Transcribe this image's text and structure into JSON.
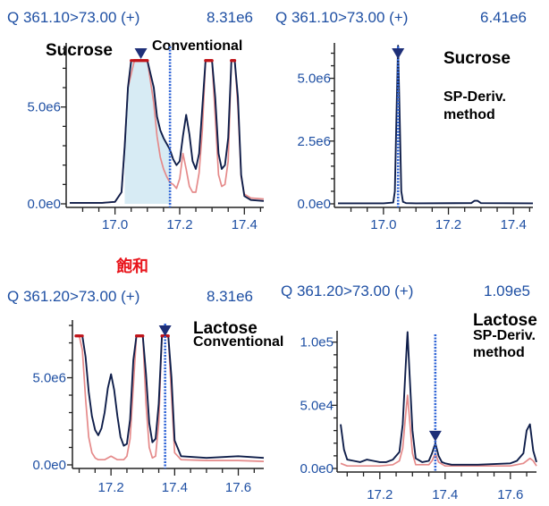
{
  "saturation_label": "飽和",
  "colors": {
    "header_text": "#1e4fa3",
    "dark_trace": "#0f1e4a",
    "light_trace": "#e58a8a",
    "saturated_trace": "#c0141a",
    "marker": "#1e2f78",
    "rt_line": "#2f64d6",
    "shade": "#d7ebf4",
    "saturation_text": "#e8141b"
  },
  "chart_data": [
    {
      "id": "sucrose-conventional",
      "type": "line",
      "header": {
        "transition": "Q 361.10>73.00 (+)",
        "intensity": "8.31e6"
      },
      "labels": [
        "Sucrose",
        "Conventional"
      ],
      "xlim": [
        16.86,
        17.46
      ],
      "ylim": [
        0,
        8310000.0
      ],
      "x_ticks": [
        17.0,
        17.2,
        17.4
      ],
      "x_tick_labels": [
        "17.0",
        "17.2",
        "17.4"
      ],
      "y_ticks": [
        0,
        5000000.0
      ],
      "y_tick_labels": [
        "0.0e0",
        "5.0e6"
      ],
      "saturation_level": 7400000.0,
      "rt_line_x": 17.17,
      "marker_x": 17.08,
      "shaded_range": [
        17.03,
        17.17
      ],
      "series": [
        {
          "role": "dark",
          "x": [
            16.86,
            16.96,
            17.0,
            17.02,
            17.03,
            17.04,
            17.05,
            17.06,
            17.08,
            17.1,
            17.12,
            17.13,
            17.14,
            17.15,
            17.16,
            17.17,
            17.18,
            17.19,
            17.2,
            17.21,
            17.22,
            17.23,
            17.24,
            17.25,
            17.26,
            17.27,
            17.28,
            17.29,
            17.3,
            17.31,
            17.32,
            17.33,
            17.34,
            17.35,
            17.36,
            17.37,
            17.38,
            17.39,
            17.4,
            17.42,
            17.46
          ],
          "y": [
            50000.0,
            50000.0,
            100000.0,
            600000.0,
            3000000.0,
            6000000.0,
            7400000.0,
            7400000.0,
            7400000.0,
            7400000.0,
            6000000.0,
            4500000.0,
            3800000.0,
            3400000.0,
            3100000.0,
            2800000.0,
            2300000.0,
            2000000.0,
            2200000.0,
            3500000.0,
            4600000.0,
            3600000.0,
            2200000.0,
            1800000.0,
            2600000.0,
            5000000.0,
            7400000.0,
            7400000.0,
            7400000.0,
            5500000.0,
            2600000.0,
            1800000.0,
            2000000.0,
            3400000.0,
            7400000.0,
            7400000.0,
            5500000.0,
            1500000.0,
            400000.0,
            200000.0,
            150000.0
          ]
        },
        {
          "role": "light",
          "x": [
            16.86,
            16.96,
            17.0,
            17.02,
            17.03,
            17.04,
            17.06,
            17.08,
            17.1,
            17.12,
            17.13,
            17.14,
            17.15,
            17.16,
            17.17,
            17.18,
            17.19,
            17.2,
            17.21,
            17.22,
            17.23,
            17.24,
            17.25,
            17.26,
            17.27,
            17.28,
            17.29,
            17.3,
            17.31,
            17.32,
            17.33,
            17.34,
            17.35,
            17.36,
            17.37,
            17.38,
            17.39,
            17.4,
            17.42,
            17.46
          ],
          "y": [
            50000.0,
            50000.0,
            100000.0,
            600000.0,
            3000000.0,
            6000000.0,
            7400000.0,
            7400000.0,
            7400000.0,
            5200000.0,
            3500000.0,
            2400000.0,
            1800000.0,
            1400000.0,
            1100000.0,
            1000000.0,
            800000.0,
            1300000.0,
            2600000.0,
            1800000.0,
            900000.0,
            600000.0,
            600000.0,
            1600000.0,
            3800000.0,
            7400000.0,
            7400000.0,
            7400000.0,
            4500000.0,
            1500000.0,
            900000.0,
            1000000.0,
            2200000.0,
            7400000.0,
            7400000.0,
            5000000.0,
            1400000.0,
            500000.0,
            300000.0,
            250000.0
          ]
        }
      ]
    },
    {
      "id": "sucrose-spderiv",
      "type": "line",
      "header": {
        "transition": "Q 361.10>73.00 (+)",
        "intensity": "6.41e6"
      },
      "labels": [
        "Sucrose",
        "SP-Deriv.",
        "method"
      ],
      "xlim": [
        16.86,
        17.46
      ],
      "ylim": [
        0,
        6410000.0
      ],
      "x_ticks": [
        17.0,
        17.2,
        17.4
      ],
      "x_tick_labels": [
        "17.0",
        "17.2",
        "17.4"
      ],
      "y_ticks": [
        0,
        2500000.0,
        5000000.0
      ],
      "y_tick_labels": [
        "0.0e0",
        "2.5e6",
        "5.0e6"
      ],
      "rt_line_x": 17.045,
      "marker_x": 17.045,
      "series": [
        {
          "role": "dark",
          "x": [
            16.86,
            17.0,
            17.03,
            17.035,
            17.04,
            17.045,
            17.05,
            17.055,
            17.06,
            17.07,
            17.1,
            17.27,
            17.28,
            17.29,
            17.3,
            17.46
          ],
          "y": [
            20000.0,
            20000.0,
            50000.0,
            500000.0,
            3500000.0,
            6300000.0,
            3500000.0,
            500000.0,
            80000.0,
            30000.0,
            20000.0,
            30000.0,
            120000.0,
            120000.0,
            30000.0,
            20000.0
          ]
        }
      ]
    },
    {
      "id": "lactose-conventional",
      "type": "line",
      "header": {
        "transition": "Q 361.20>73.00 (+)",
        "intensity": "8.31e6"
      },
      "labels": [
        "Lactose",
        "Conventional"
      ],
      "xlim": [
        17.09,
        17.68
      ],
      "ylim": [
        0,
        8310000.0
      ],
      "x_ticks": [
        17.2,
        17.4,
        17.6
      ],
      "x_tick_labels": [
        "17.2",
        "17.4",
        "17.6"
      ],
      "y_ticks": [
        0,
        5000000.0
      ],
      "y_tick_labels": [
        "0.0e0",
        "5.0e6"
      ],
      "saturation_level": 7400000.0,
      "rt_line_x": 17.37,
      "marker_x": 17.37,
      "series": [
        {
          "role": "dark",
          "x": [
            17.09,
            17.1,
            17.11,
            17.12,
            17.13,
            17.14,
            17.15,
            17.16,
            17.17,
            17.18,
            17.19,
            17.2,
            17.21,
            17.22,
            17.23,
            17.24,
            17.25,
            17.26,
            17.27,
            17.28,
            17.29,
            17.3,
            17.31,
            17.32,
            17.33,
            17.34,
            17.35,
            17.36,
            17.37,
            17.38,
            17.39,
            17.4,
            17.42,
            17.5,
            17.6,
            17.68
          ],
          "y": [
            7400000.0,
            7400000.0,
            7400000.0,
            6200000.0,
            4200000.0,
            2800000.0,
            2000000.0,
            1700000.0,
            2100000.0,
            3000000.0,
            4400000.0,
            5200000.0,
            4300000.0,
            2800000.0,
            1600000.0,
            1100000.0,
            1200000.0,
            2600000.0,
            6000000.0,
            7400000.0,
            7400000.0,
            7400000.0,
            5200000.0,
            2400000.0,
            1300000.0,
            1500000.0,
            3500000.0,
            7400000.0,
            7400000.0,
            7400000.0,
            5000000.0,
            1400000.0,
            500000.0,
            400000.0,
            500000.0,
            400000.0
          ]
        },
        {
          "role": "light",
          "x": [
            17.09,
            17.1,
            17.11,
            17.12,
            17.13,
            17.14,
            17.15,
            17.16,
            17.17,
            17.18,
            17.19,
            17.2,
            17.21,
            17.22,
            17.23,
            17.24,
            17.25,
            17.26,
            17.27,
            17.28,
            17.29,
            17.3,
            17.31,
            17.32,
            17.33,
            17.34,
            17.35,
            17.36,
            17.37,
            17.38,
            17.39,
            17.4,
            17.42,
            17.5,
            17.6,
            17.68
          ],
          "y": [
            7400000.0,
            7400000.0,
            6600000.0,
            3800000.0,
            1600000.0,
            700000.0,
            400000.0,
            300000.0,
            300000.0,
            300000.0,
            400000.0,
            500000.0,
            400000.0,
            300000.0,
            300000.0,
            300000.0,
            500000.0,
            1500000.0,
            4500000.0,
            7400000.0,
            7400000.0,
            7400000.0,
            3500000.0,
            1000000.0,
            400000.0,
            500000.0,
            2400000.0,
            7400000.0,
            7400000.0,
            7400000.0,
            4000000.0,
            700000.0,
            300000.0,
            250000.0,
            250000.0,
            200000.0
          ]
        }
      ]
    },
    {
      "id": "lactose-spderiv",
      "type": "line",
      "header": {
        "transition": "Q 361.20>73.00 (+)",
        "intensity": "1.09e5"
      },
      "labels": [
        "Lactose",
        "SP-Deriv.",
        "method"
      ],
      "xlim": [
        17.08,
        17.68
      ],
      "ylim": [
        0,
        109000.0
      ],
      "x_ticks": [
        17.2,
        17.4,
        17.6
      ],
      "x_tick_labels": [
        "17.2",
        "17.4",
        "17.6"
      ],
      "y_ticks": [
        0,
        50000.0,
        100000.0
      ],
      "y_tick_labels": [
        "0.0e0",
        "5.0e4",
        "1.0e5"
      ],
      "rt_line_x": 17.37,
      "marker_x": 17.37,
      "series": [
        {
          "role": "dark",
          "x": [
            17.08,
            17.09,
            17.1,
            17.12,
            17.14,
            17.16,
            17.18,
            17.2,
            17.22,
            17.24,
            17.26,
            17.27,
            17.28,
            17.285,
            17.29,
            17.3,
            17.31,
            17.33,
            17.35,
            17.36,
            17.37,
            17.38,
            17.39,
            17.4,
            17.42,
            17.5,
            17.6,
            17.62,
            17.64,
            17.65,
            17.66,
            17.67,
            17.68
          ],
          "y": [
            35000.0,
            15000.0,
            7000.0,
            6000.0,
            5000.0,
            7000.0,
            6000.0,
            5000.0,
            5000.0,
            7000.0,
            13000.0,
            35000.0,
            85000.0,
            108000.0,
            80000.0,
            30000.0,
            8000.0,
            5000.0,
            6000.0,
            12000.0,
            20000.0,
            10000.0,
            5000.0,
            4000.0,
            3000.0,
            3000.0,
            4000.0,
            6000.0,
            12000.0,
            30000.0,
            35000.0,
            14000.0,
            5000.0
          ]
        },
        {
          "role": "light",
          "x": [
            17.08,
            17.1,
            17.14,
            17.2,
            17.24,
            17.26,
            17.27,
            17.28,
            17.285,
            17.29,
            17.3,
            17.31,
            17.35,
            17.36,
            17.37,
            17.38,
            17.4,
            17.5,
            17.6,
            17.64,
            17.66,
            17.67,
            17.68
          ],
          "y": [
            4000.0,
            2000.0,
            2000.0,
            2000.0,
            3000.0,
            6000.0,
            16000.0,
            45000.0,
            58000.0,
            42000.0,
            12000.0,
            3000.0,
            3000.0,
            6000.0,
            12000.0,
            5000.0,
            2000.0,
            2000.0,
            2000.0,
            4000.0,
            8000.0,
            6000.0,
            2000.0
          ]
        }
      ]
    }
  ]
}
